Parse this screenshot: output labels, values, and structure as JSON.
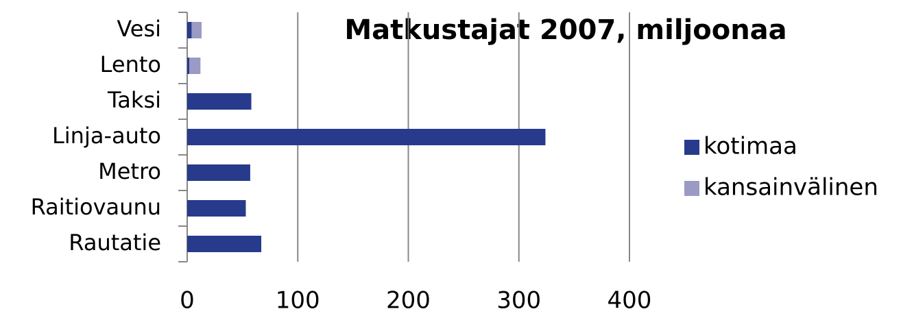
{
  "chart_data": {
    "type": "stacked-bar-horizontal",
    "title": "Matkustajat 2007, miljoonaa",
    "categories": [
      "Vesi",
      "Lento",
      "Taksi",
      "Linja-auto",
      "Metro",
      "Raitiovaunu",
      "Rautatie"
    ],
    "series": [
      {
        "name": "kotimaa",
        "color": "#283a8c",
        "values": [
          4,
          2,
          58,
          324,
          57,
          53,
          67
        ]
      },
      {
        "name": "kansainvälinen",
        "color": "#9a9ac4",
        "values": [
          9,
          10,
          0,
          0,
          0,
          0,
          0
        ]
      }
    ],
    "xlim": [
      0,
      400
    ],
    "xticks": [
      0,
      100,
      200,
      300,
      400
    ],
    "grid": true,
    "legend": "right"
  }
}
